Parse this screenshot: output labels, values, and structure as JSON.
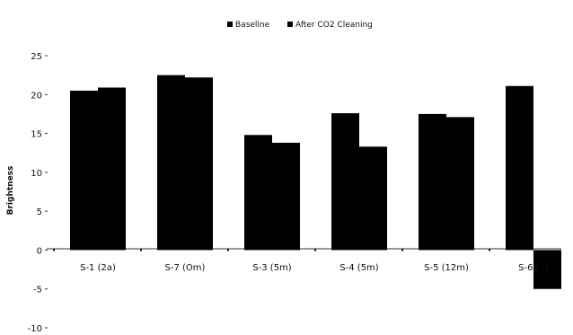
{
  "chart_data": {
    "type": "bar",
    "title": "",
    "xlabel": "",
    "ylabel": "Brightness",
    "ylim": [
      -10,
      25
    ],
    "yticks": [
      25,
      20,
      15,
      10,
      5,
      0,
      -5,
      -10
    ],
    "grid": false,
    "legend_position": "top",
    "categories": [
      "S-1 (2a)",
      "S-7 (Om)",
      "S-3 (5m)",
      "S-4 (5m)",
      "S-5 (12m)",
      "S-6 (..)"
    ],
    "series": [
      {
        "name": "Baseline",
        "values": [
          20.5,
          22.5,
          14.8,
          17.6,
          17.5,
          21.1
        ]
      },
      {
        "name": "After CO2 Cleaning",
        "values": [
          20.9,
          22.2,
          13.8,
          13.3,
          17.1,
          -5.0
        ]
      }
    ],
    "colors": {
      "bar": "#000000",
      "text": "#111111",
      "axis": "#333333"
    }
  }
}
